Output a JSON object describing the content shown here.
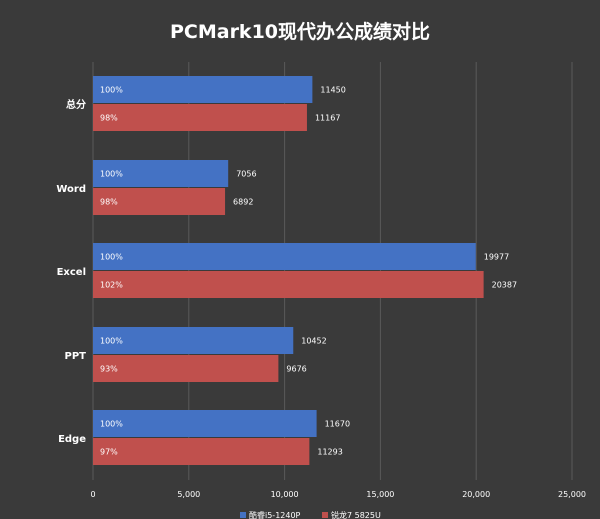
{
  "chart_data": {
    "type": "bar",
    "orientation": "horizontal",
    "title": "PCMark10现代办公成绩对比",
    "categories": [
      "总分",
      "Word",
      "Excel",
      "PPT",
      "Edge"
    ],
    "series": [
      {
        "name": "酷睿i5-1240P",
        "color": "#4472c4",
        "values": [
          11450,
          7056,
          19977,
          10452,
          11670
        ],
        "percent_labels": [
          "100%",
          "100%",
          "100%",
          "100%",
          "100%"
        ]
      },
      {
        "name": "锐龙7 5825U",
        "color": "#c0504d",
        "values": [
          11167,
          6892,
          20387,
          9676,
          11293
        ],
        "percent_labels": [
          "98%",
          "98%",
          "102%",
          "93%",
          "97%"
        ]
      }
    ],
    "xlim": [
      0,
      25000
    ],
    "xticks": [
      0,
      5000,
      10000,
      15000,
      20000,
      25000
    ],
    "xtick_labels": [
      "0",
      "5,000",
      "10,000",
      "15,000",
      "20,000",
      "25,000"
    ],
    "grid": true,
    "legend_position": "bottom"
  },
  "colors": {
    "background": "#3a3a3a",
    "gridline": "#5a5a5a",
    "text": "#ffffff"
  }
}
